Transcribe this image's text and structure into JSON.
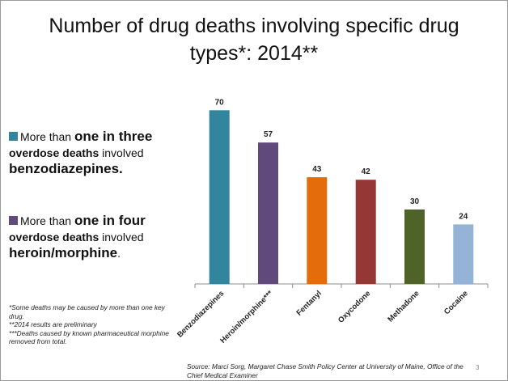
{
  "slide": {
    "title": "Number of drug deaths involving specific drug types*: 2014**",
    "page_number": "3"
  },
  "bullets": [
    {
      "color": "#31859C",
      "pre": "More than ",
      "bold1": "one in three",
      "bold2": "overdose deaths",
      "mid": " involved",
      "bold3": "benzodiazepines.",
      "post": ""
    },
    {
      "color": "#604A7B",
      "pre": "More than ",
      "bold1": "one in four",
      "bold2": "overdose deaths",
      "mid": " involved",
      "bold3": "heroin/morphine",
      "post": "."
    }
  ],
  "footnotes": [
    "*Some deaths may be caused by more than one key drug.",
    "**2014 results are preliminary",
    "***Deaths caused by known pharmaceutical morphine removed from total."
  ],
  "source": "Source: Marci Sorg, Margaret Chase Smith Policy Center at University of Maine, Office of the Chief Medical Examiner",
  "chart_data": {
    "type": "bar",
    "title": "Number of drug deaths involving specific drug types*: 2014**",
    "categories": [
      "Benzodiazepines",
      "Heroin/morphine***",
      "Fentanyl",
      "Oxycodone",
      "Methadone",
      "Cocaine"
    ],
    "values": [
      70,
      57,
      43,
      42,
      30,
      24
    ],
    "colors": [
      "#31859C",
      "#604A7B",
      "#E46C0A",
      "#953735",
      "#4F6228",
      "#95B3D7"
    ],
    "ylim": [
      0,
      75
    ],
    "grid": false,
    "xlabel": "",
    "ylabel": ""
  }
}
